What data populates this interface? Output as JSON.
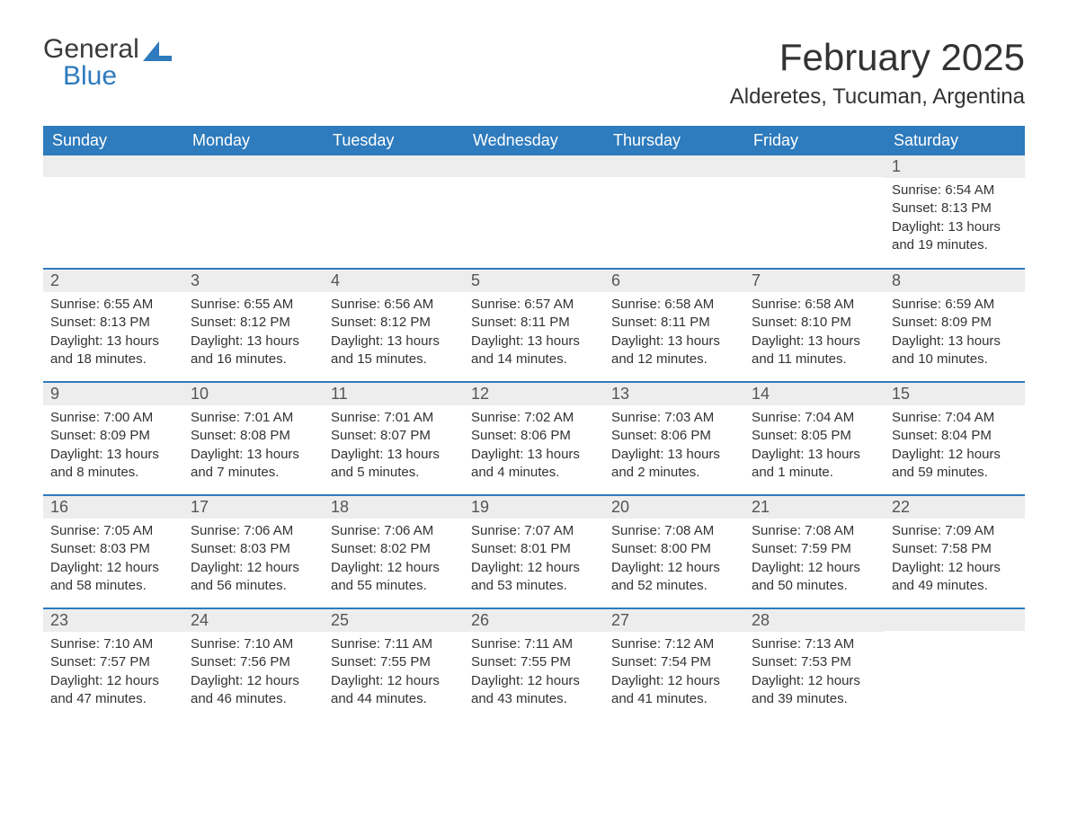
{
  "brand": {
    "general": "General",
    "blue": "Blue"
  },
  "colors": {
    "header_bg": "#2e7bbd",
    "header_text": "#ffffff",
    "daynum_bg": "#ededed",
    "border": "#2e7bbd",
    "body_text": "#333333"
  },
  "title": "February 2025",
  "location": "Alderetes, Tucuman, Argentina",
  "weekdays": [
    "Sunday",
    "Monday",
    "Tuesday",
    "Wednesday",
    "Thursday",
    "Friday",
    "Saturday"
  ],
  "weeks": [
    [
      null,
      null,
      null,
      null,
      null,
      null,
      {
        "n": "1",
        "sunrise": "Sunrise: 6:54 AM",
        "sunset": "Sunset: 8:13 PM",
        "daylight": "Daylight: 13 hours and 19 minutes."
      }
    ],
    [
      {
        "n": "2",
        "sunrise": "Sunrise: 6:55 AM",
        "sunset": "Sunset: 8:13 PM",
        "daylight": "Daylight: 13 hours and 18 minutes."
      },
      {
        "n": "3",
        "sunrise": "Sunrise: 6:55 AM",
        "sunset": "Sunset: 8:12 PM",
        "daylight": "Daylight: 13 hours and 16 minutes."
      },
      {
        "n": "4",
        "sunrise": "Sunrise: 6:56 AM",
        "sunset": "Sunset: 8:12 PM",
        "daylight": "Daylight: 13 hours and 15 minutes."
      },
      {
        "n": "5",
        "sunrise": "Sunrise: 6:57 AM",
        "sunset": "Sunset: 8:11 PM",
        "daylight": "Daylight: 13 hours and 14 minutes."
      },
      {
        "n": "6",
        "sunrise": "Sunrise: 6:58 AM",
        "sunset": "Sunset: 8:11 PM",
        "daylight": "Daylight: 13 hours and 12 minutes."
      },
      {
        "n": "7",
        "sunrise": "Sunrise: 6:58 AM",
        "sunset": "Sunset: 8:10 PM",
        "daylight": "Daylight: 13 hours and 11 minutes."
      },
      {
        "n": "8",
        "sunrise": "Sunrise: 6:59 AM",
        "sunset": "Sunset: 8:09 PM",
        "daylight": "Daylight: 13 hours and 10 minutes."
      }
    ],
    [
      {
        "n": "9",
        "sunrise": "Sunrise: 7:00 AM",
        "sunset": "Sunset: 8:09 PM",
        "daylight": "Daylight: 13 hours and 8 minutes."
      },
      {
        "n": "10",
        "sunrise": "Sunrise: 7:01 AM",
        "sunset": "Sunset: 8:08 PM",
        "daylight": "Daylight: 13 hours and 7 minutes."
      },
      {
        "n": "11",
        "sunrise": "Sunrise: 7:01 AM",
        "sunset": "Sunset: 8:07 PM",
        "daylight": "Daylight: 13 hours and 5 minutes."
      },
      {
        "n": "12",
        "sunrise": "Sunrise: 7:02 AM",
        "sunset": "Sunset: 8:06 PM",
        "daylight": "Daylight: 13 hours and 4 minutes."
      },
      {
        "n": "13",
        "sunrise": "Sunrise: 7:03 AM",
        "sunset": "Sunset: 8:06 PM",
        "daylight": "Daylight: 13 hours and 2 minutes."
      },
      {
        "n": "14",
        "sunrise": "Sunrise: 7:04 AM",
        "sunset": "Sunset: 8:05 PM",
        "daylight": "Daylight: 13 hours and 1 minute."
      },
      {
        "n": "15",
        "sunrise": "Sunrise: 7:04 AM",
        "sunset": "Sunset: 8:04 PM",
        "daylight": "Daylight: 12 hours and 59 minutes."
      }
    ],
    [
      {
        "n": "16",
        "sunrise": "Sunrise: 7:05 AM",
        "sunset": "Sunset: 8:03 PM",
        "daylight": "Daylight: 12 hours and 58 minutes."
      },
      {
        "n": "17",
        "sunrise": "Sunrise: 7:06 AM",
        "sunset": "Sunset: 8:03 PM",
        "daylight": "Daylight: 12 hours and 56 minutes."
      },
      {
        "n": "18",
        "sunrise": "Sunrise: 7:06 AM",
        "sunset": "Sunset: 8:02 PM",
        "daylight": "Daylight: 12 hours and 55 minutes."
      },
      {
        "n": "19",
        "sunrise": "Sunrise: 7:07 AM",
        "sunset": "Sunset: 8:01 PM",
        "daylight": "Daylight: 12 hours and 53 minutes."
      },
      {
        "n": "20",
        "sunrise": "Sunrise: 7:08 AM",
        "sunset": "Sunset: 8:00 PM",
        "daylight": "Daylight: 12 hours and 52 minutes."
      },
      {
        "n": "21",
        "sunrise": "Sunrise: 7:08 AM",
        "sunset": "Sunset: 7:59 PM",
        "daylight": "Daylight: 12 hours and 50 minutes."
      },
      {
        "n": "22",
        "sunrise": "Sunrise: 7:09 AM",
        "sunset": "Sunset: 7:58 PM",
        "daylight": "Daylight: 12 hours and 49 minutes."
      }
    ],
    [
      {
        "n": "23",
        "sunrise": "Sunrise: 7:10 AM",
        "sunset": "Sunset: 7:57 PM",
        "daylight": "Daylight: 12 hours and 47 minutes."
      },
      {
        "n": "24",
        "sunrise": "Sunrise: 7:10 AM",
        "sunset": "Sunset: 7:56 PM",
        "daylight": "Daylight: 12 hours and 46 minutes."
      },
      {
        "n": "25",
        "sunrise": "Sunrise: 7:11 AM",
        "sunset": "Sunset: 7:55 PM",
        "daylight": "Daylight: 12 hours and 44 minutes."
      },
      {
        "n": "26",
        "sunrise": "Sunrise: 7:11 AM",
        "sunset": "Sunset: 7:55 PM",
        "daylight": "Daylight: 12 hours and 43 minutes."
      },
      {
        "n": "27",
        "sunrise": "Sunrise: 7:12 AM",
        "sunset": "Sunset: 7:54 PM",
        "daylight": "Daylight: 12 hours and 41 minutes."
      },
      {
        "n": "28",
        "sunrise": "Sunrise: 7:13 AM",
        "sunset": "Sunset: 7:53 PM",
        "daylight": "Daylight: 12 hours and 39 minutes."
      },
      null
    ]
  ]
}
